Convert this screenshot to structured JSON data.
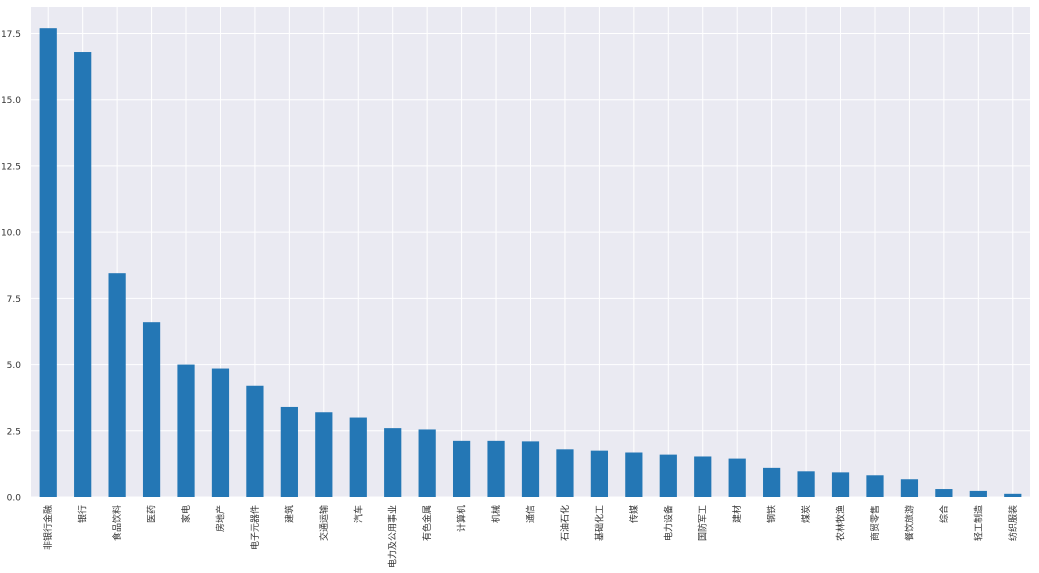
{
  "chart_data": {
    "type": "bar",
    "title": "",
    "xlabel": "",
    "ylabel": "",
    "ylim": [
      0,
      18.5
    ],
    "yticks": [
      0.0,
      2.5,
      5.0,
      7.5,
      10.0,
      12.5,
      15.0,
      17.5
    ],
    "ytick_labels": [
      "0.0",
      "2.5",
      "5.0",
      "7.5",
      "10.0",
      "12.5",
      "15.0",
      "17.5"
    ],
    "grid": true,
    "colors": {
      "bar": "#2477b5",
      "plot_bg": "#eaeaf2",
      "grid": "#ffffff",
      "tick_text": "#333333"
    },
    "categories": [
      "非银行金融",
      "银行",
      "食品饮料",
      "医药",
      "家电",
      "房地产",
      "电子元器件",
      "建筑",
      "交通运输",
      "汽车",
      "电力及公用事业",
      "有色金属",
      "计算机",
      "机械",
      "通信",
      "石油石化",
      "基础化工",
      "传媒",
      "电力设备",
      "国防军工",
      "建材",
      "钢铁",
      "煤炭",
      "农林牧渔",
      "商贸零售",
      "餐饮旅游",
      "综合",
      "轻工制造",
      "纺织服装"
    ],
    "values": [
      17.7,
      16.8,
      8.45,
      6.6,
      5.0,
      4.85,
      4.2,
      3.4,
      3.2,
      3.0,
      2.6,
      2.55,
      2.12,
      2.12,
      2.1,
      1.8,
      1.75,
      1.68,
      1.6,
      1.53,
      1.45,
      1.1,
      0.97,
      0.93,
      0.82,
      0.67,
      0.3,
      0.23,
      0.12
    ]
  }
}
